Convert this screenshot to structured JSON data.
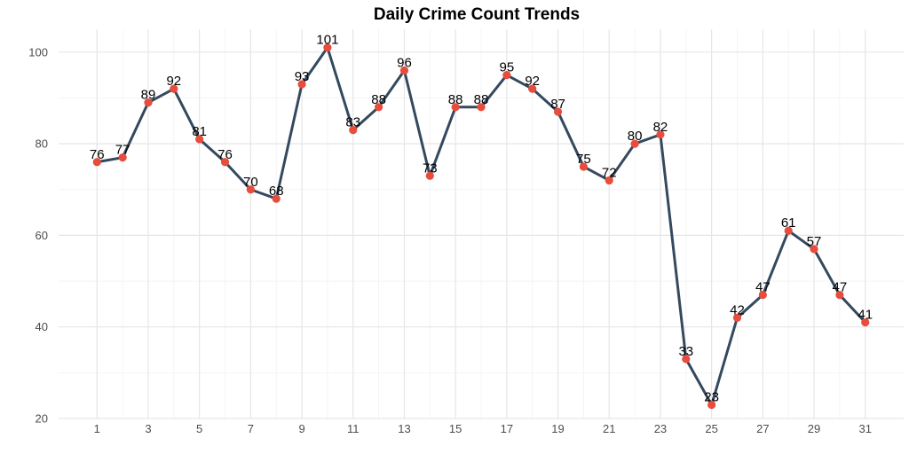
{
  "chart_data": {
    "type": "line",
    "title": "Daily Crime Count Trends",
    "xlabel": "",
    "ylabel": "",
    "x": [
      1,
      2,
      3,
      4,
      5,
      6,
      7,
      8,
      9,
      10,
      11,
      12,
      13,
      14,
      15,
      16,
      17,
      18,
      19,
      20,
      21,
      22,
      23,
      24,
      25,
      26,
      27,
      28,
      29,
      30,
      31
    ],
    "series": [
      {
        "values": [
          76,
          77,
          89,
          92,
          81,
          76,
          70,
          68,
          93,
          101,
          83,
          88,
          96,
          73,
          88,
          88,
          95,
          92,
          87,
          75,
          72,
          80,
          82,
          33,
          23,
          42,
          47,
          61,
          57,
          47,
          41
        ]
      }
    ],
    "x_ticks": [
      1,
      3,
      5,
      7,
      9,
      11,
      13,
      15,
      17,
      19,
      21,
      23,
      25,
      27,
      29,
      31
    ],
    "y_ticks": [
      20,
      40,
      60,
      80,
      100
    ],
    "xlim": [
      -0.5,
      32.5
    ],
    "ylim": [
      20,
      105
    ],
    "grid": true,
    "data_labels": true,
    "colors": {
      "line": "#34495e",
      "marker": "#e74c3c"
    }
  }
}
